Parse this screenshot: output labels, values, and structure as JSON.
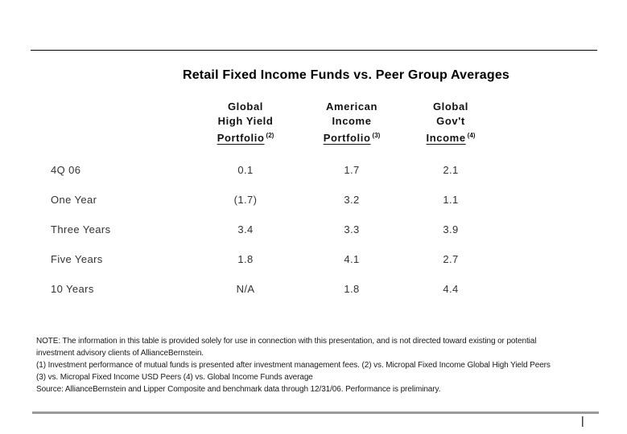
{
  "page": {
    "title": "Retail Fixed Income Funds vs. Peer Group Averages",
    "page_marker": "|"
  },
  "table": {
    "columns": [
      {
        "lines": [
          "Global",
          "High Yield"
        ],
        "underlined": "Portfolio",
        "superscript": "(2)"
      },
      {
        "lines": [
          "American",
          "Income"
        ],
        "underlined": "Portfolio",
        "superscript": "(3)"
      },
      {
        "lines": [
          "Global",
          "Gov't"
        ],
        "underlined": "Income",
        "superscript": "(4)"
      }
    ],
    "rows": [
      {
        "label": "4Q 06",
        "values": [
          "0.1",
          "1.7",
          "2.1"
        ]
      },
      {
        "label": "One Year",
        "values": [
          "(1.7)",
          "3.2",
          "1.1"
        ]
      },
      {
        "label": "Three Years",
        "values": [
          "3.4",
          "3.3",
          "3.9"
        ]
      },
      {
        "label": "Five Years",
        "values": [
          "1.8",
          "4.1",
          "2.7"
        ]
      },
      {
        "label": "10 Years",
        "values": [
          "N/A",
          "1.8",
          "4.4"
        ]
      }
    ]
  },
  "footnotes": {
    "lines": [
      "NOTE: The information in this table is provided solely for use in connection with this presentation, and is not directed toward existing or potential",
      "investment advisory clients of AllianceBernstein.",
      "(1) Investment performance of mutual funds is presented after investment management fees. (2) vs. Micropal Fixed Income Global High Yield Peers",
      "(3) vs. Micropal Fixed Income USD Peers (4) vs. Global Income Funds average",
      "Source:  AllianceBernstein and Lipper Composite and benchmark data through 12/31/06. Performance is preliminary."
    ]
  },
  "colors": {
    "title_text": "#000000",
    "body_text": "#333333",
    "top_rule": "#000000",
    "bottom_rule": "#9a9a9a"
  }
}
